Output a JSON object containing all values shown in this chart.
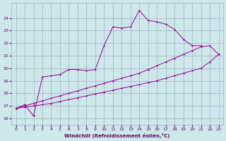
{
  "xlabel": "Windchill (Refroidissement éolien,°C)",
  "bg_color": "#cce8e8",
  "grid_color": "#aaaacc",
  "line_color": "#990099",
  "xlim": [
    -0.5,
    23.5
  ],
  "ylim": [
    15.5,
    25.2
  ],
  "yticks": [
    16,
    17,
    18,
    19,
    20,
    21,
    22,
    23,
    24
  ],
  "xticks": [
    0,
    1,
    2,
    3,
    4,
    5,
    6,
    7,
    8,
    9,
    10,
    11,
    12,
    13,
    14,
    15,
    16,
    17,
    18,
    19,
    20,
    21,
    22,
    23
  ],
  "series": [
    {
      "x": [
        0,
        1,
        2,
        3,
        4,
        5,
        6,
        7,
        8,
        9,
        10,
        11,
        12,
        13,
        14,
        15,
        16,
        17,
        18,
        19,
        20,
        21
      ],
      "y": [
        16.8,
        17.1,
        16.2,
        19.3,
        19.4,
        19.5,
        19.9,
        19.9,
        19.8,
        19.9,
        21.8,
        23.3,
        23.2,
        23.3,
        24.6,
        23.8,
        23.7,
        23.5,
        23.1,
        22.3,
        21.8,
        21.8
      ]
    },
    {
      "x": [
        0,
        1,
        2,
        3,
        4,
        5,
        6,
        7,
        8,
        9,
        10,
        11,
        12,
        13,
        14,
        15,
        16,
        17,
        18,
        19,
        20,
        21,
        22,
        23
      ],
      "y": [
        16.8,
        17.0,
        17.2,
        17.4,
        17.6,
        17.8,
        18.0,
        18.2,
        18.4,
        18.6,
        18.8,
        19.0,
        19.2,
        19.4,
        19.6,
        19.9,
        20.2,
        20.5,
        20.8,
        21.1,
        21.4,
        21.7,
        21.8,
        21.1
      ]
    },
    {
      "x": [
        0,
        1,
        2,
        3,
        4,
        5,
        6,
        7,
        8,
        9,
        10,
        11,
        12,
        13,
        14,
        15,
        16,
        17,
        18,
        19,
        20,
        21,
        22,
        23
      ],
      "y": [
        16.8,
        16.9,
        17.0,
        17.1,
        17.2,
        17.35,
        17.5,
        17.65,
        17.8,
        17.95,
        18.1,
        18.25,
        18.4,
        18.55,
        18.7,
        18.85,
        19.0,
        19.2,
        19.4,
        19.6,
        19.8,
        20.0,
        20.5,
        21.1
      ]
    }
  ]
}
